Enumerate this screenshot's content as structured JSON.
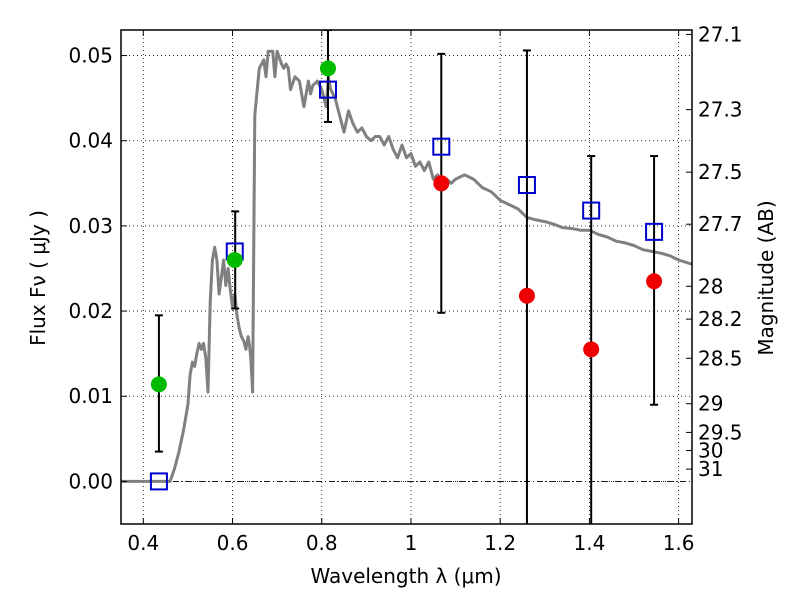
{
  "chart_data": {
    "type": "scatter",
    "xlabel": "Wavelength  λ (μm)",
    "ylabel_left": "Flux  Fν  ( μJy )",
    "ylabel_right": "Magnitude (AB)",
    "xlim": [
      0.35,
      1.63
    ],
    "ylim": [
      -0.005,
      0.053
    ],
    "grid": true,
    "x_ticks": [
      {
        "value": 0.4,
        "label": "0.4"
      },
      {
        "value": 0.6,
        "label": "0.6"
      },
      {
        "value": 0.8,
        "label": "0.8"
      },
      {
        "value": 1.0,
        "label": "1"
      },
      {
        "value": 1.2,
        "label": "1.2"
      },
      {
        "value": 1.4,
        "label": "1.4"
      },
      {
        "value": 1.6,
        "label": "1.6"
      }
    ],
    "y_ticks": [
      {
        "value": 0.0,
        "label": "0.00"
      },
      {
        "value": 0.01,
        "label": "0.01"
      },
      {
        "value": 0.02,
        "label": "0.02"
      },
      {
        "value": 0.03,
        "label": "0.03"
      },
      {
        "value": 0.04,
        "label": "0.04"
      },
      {
        "value": 0.05,
        "label": "0.05"
      }
    ],
    "right_ticks": [
      {
        "mag": 27.1,
        "label": "27.1"
      },
      {
        "mag": 27.3,
        "label": "27.3"
      },
      {
        "mag": 27.5,
        "label": "27.5"
      },
      {
        "mag": 27.7,
        "label": "27.7"
      },
      {
        "mag": 28.0,
        "label": "28"
      },
      {
        "mag": 28.2,
        "label": "28.2"
      },
      {
        "mag": 28.5,
        "label": "28.5"
      },
      {
        "mag": 29.0,
        "label": "29"
      },
      {
        "mag": 29.5,
        "label": "29.5"
      },
      {
        "mag": 30.0,
        "label": "30"
      },
      {
        "mag": 31.0,
        "label": "31"
      }
    ],
    "magnitude_zeropoint": 23.9,
    "zero_line": 0.0,
    "series": [
      {
        "kind": "line",
        "color": "#808080",
        "x": [
          0.35,
          0.46,
          0.47,
          0.48,
          0.49,
          0.5,
          0.505,
          0.51,
          0.515,
          0.52,
          0.525,
          0.53,
          0.535,
          0.54,
          0.545,
          0.55,
          0.555,
          0.56,
          0.565,
          0.57,
          0.575,
          0.58,
          0.585,
          0.59,
          0.595,
          0.6,
          0.605,
          0.61,
          0.615,
          0.62,
          0.625,
          0.63,
          0.635,
          0.638,
          0.641,
          0.645,
          0.65,
          0.66,
          0.67,
          0.675,
          0.68,
          0.69,
          0.695,
          0.7,
          0.71,
          0.715,
          0.72,
          0.725,
          0.73,
          0.74,
          0.75,
          0.76,
          0.77,
          0.775,
          0.78,
          0.79,
          0.8,
          0.81,
          0.815,
          0.82,
          0.83,
          0.84,
          0.85,
          0.86,
          0.87,
          0.88,
          0.89,
          0.9,
          0.91,
          0.92,
          0.93,
          0.94,
          0.95,
          0.96,
          0.97,
          0.98,
          0.99,
          1.0,
          1.01,
          1.02,
          1.03,
          1.04,
          1.05,
          1.06,
          1.07,
          1.08,
          1.09,
          1.1,
          1.12,
          1.14,
          1.16,
          1.18,
          1.2,
          1.22,
          1.24,
          1.26,
          1.28,
          1.3,
          1.32,
          1.34,
          1.36,
          1.38,
          1.4,
          1.42,
          1.44,
          1.46,
          1.48,
          1.5,
          1.52,
          1.54,
          1.56,
          1.58,
          1.6,
          1.63
        ],
        "y": [
          0.0,
          0.0,
          0.0015,
          0.0035,
          0.006,
          0.009,
          0.0125,
          0.014,
          0.0135,
          0.015,
          0.0162,
          0.0155,
          0.0162,
          0.0145,
          0.0105,
          0.021,
          0.026,
          0.0275,
          0.026,
          0.022,
          0.024,
          0.026,
          0.023,
          0.025,
          0.0225,
          0.0205,
          0.022,
          0.0195,
          0.018,
          0.017,
          0.0165,
          0.0155,
          0.017,
          0.016,
          0.0145,
          0.0105,
          0.043,
          0.0485,
          0.0495,
          0.0475,
          0.0505,
          0.0505,
          0.0475,
          0.0505,
          0.049,
          0.0485,
          0.049,
          0.0485,
          0.046,
          0.0475,
          0.047,
          0.044,
          0.047,
          0.0455,
          0.0465,
          0.047,
          0.046,
          0.044,
          0.0475,
          0.046,
          0.045,
          0.043,
          0.041,
          0.0435,
          0.042,
          0.041,
          0.0415,
          0.0405,
          0.04,
          0.0405,
          0.0405,
          0.0395,
          0.0405,
          0.039,
          0.038,
          0.0395,
          0.038,
          0.0385,
          0.037,
          0.0375,
          0.0365,
          0.0375,
          0.0355,
          0.036,
          0.0345,
          0.0355,
          0.035,
          0.0355,
          0.036,
          0.0355,
          0.0345,
          0.034,
          0.033,
          0.0325,
          0.032,
          0.031,
          0.0307,
          0.0305,
          0.0302,
          0.0298,
          0.0297,
          0.0295,
          0.0295,
          0.029,
          0.0287,
          0.0282,
          0.028,
          0.0277,
          0.0272,
          0.027,
          0.0268,
          0.0265,
          0.026,
          0.0255
        ]
      },
      {
        "kind": "errorbar",
        "color": "#000000",
        "points": [
          {
            "x": 0.435,
            "low": 0.0035,
            "high": 0.0195
          },
          {
            "x": 0.606,
            "low": 0.0203,
            "high": 0.0317
          },
          {
            "x": 0.814,
            "low": 0.0422,
            "high": 0.053
          },
          {
            "x": 1.068,
            "low": 0.0198,
            "high": 0.0502
          },
          {
            "x": 1.26,
            "low": -0.006,
            "high": 0.0506
          },
          {
            "x": 1.404,
            "low": -0.006,
            "high": 0.0382
          },
          {
            "x": 1.545,
            "low": 0.009,
            "high": 0.0382
          }
        ]
      },
      {
        "kind": "markers",
        "marker": "square-open",
        "color": "#0000cc",
        "x": [
          0.435,
          0.605,
          0.814,
          1.068,
          1.26,
          1.404,
          1.545
        ],
        "y": [
          0.0,
          0.027,
          0.046,
          0.0393,
          0.0348,
          0.0318,
          0.0293
        ]
      },
      {
        "kind": "markers",
        "marker": "circle",
        "color": "#00bb00",
        "x": [
          0.435,
          0.605,
          0.814
        ],
        "y": [
          0.0114,
          0.026,
          0.0485
        ]
      },
      {
        "kind": "markers",
        "marker": "circle",
        "color": "#ee0000",
        "x": [
          1.068,
          1.26,
          1.404,
          1.545
        ],
        "y": [
          0.035,
          0.0218,
          0.0155,
          0.0235
        ]
      }
    ]
  }
}
